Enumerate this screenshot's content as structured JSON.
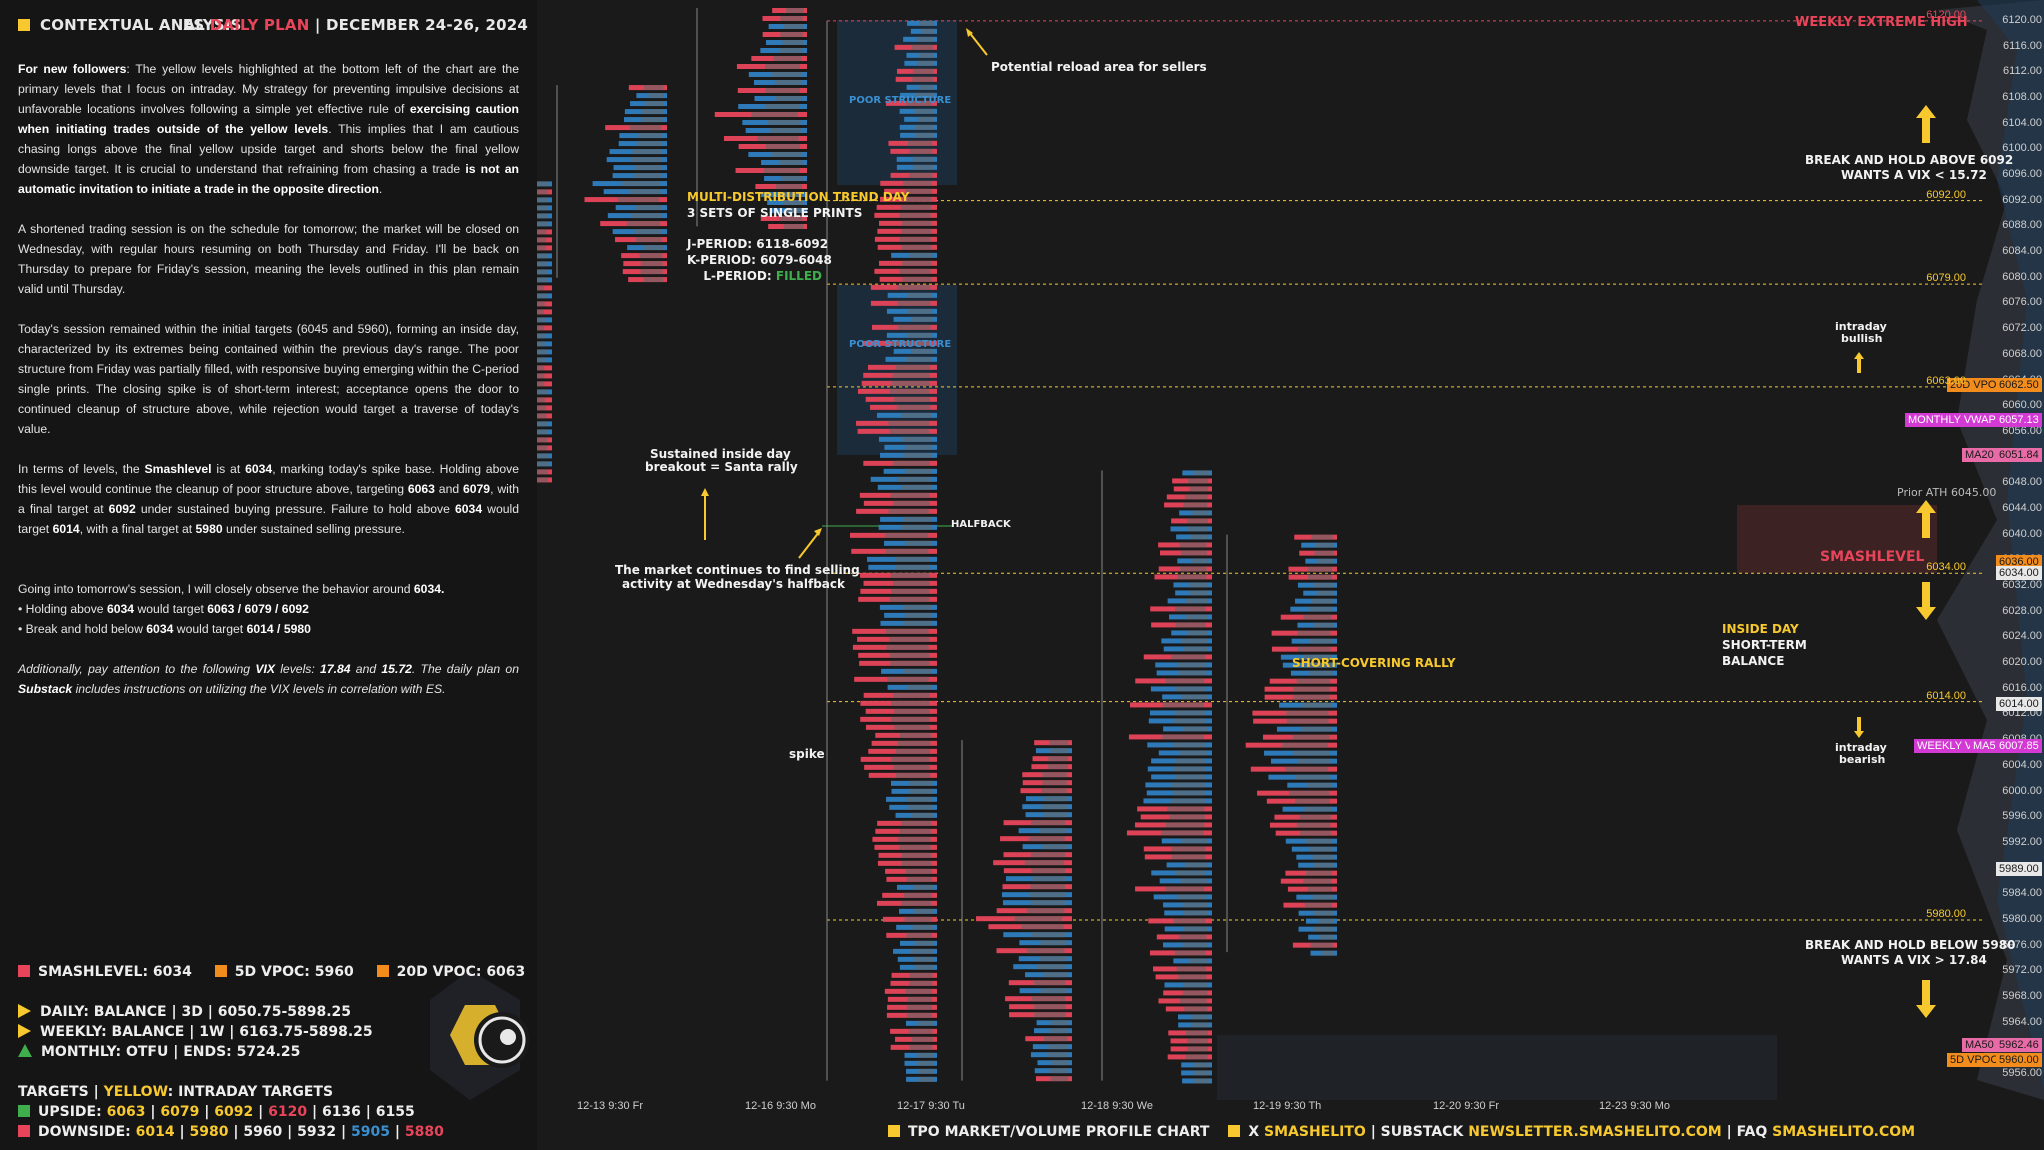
{
  "header": {
    "left_title": "CONTEXTUAL ANALYSIS",
    "symbol": "ES",
    "plan": "DAILY PLAN",
    "sep": "|",
    "dates": "DECEMBER 24-26, 2024"
  },
  "paragraphs": {
    "p1_lead": "For new followers",
    "p1_a": ": The yellow levels highlighted at the bottom left of the chart are the primary levels that I focus on intraday. My strategy for preventing impulsive decisions at unfavorable locations involves following a simple yet effective rule of ",
    "p1_b": "exercising caution when initiating trades outside of the yellow levels",
    "p1_c": ". This implies that I am cautious chasing longs above the final yellow upside target and shorts below the final yellow downside target. It is crucial to understand that refraining from chasing a trade ",
    "p1_d": "is not an automatic invitation to initiate a trade in the opposite direction",
    "p1_e": ".",
    "p2": "A shortened trading session is on the schedule for tomorrow; the market will be closed on Wednesday, with regular hours resuming on both Thursday and Friday. I'll be back on Thursday to prepare for Friday's session, meaning the levels outlined in this plan remain valid until Thursday.",
    "p3": "Today's session remained within the initial targets (6045 and 5960), forming an inside day, characterized by its extremes being contained within the previous day's range. The poor structure from Friday was partially filled, with responsive buying emerging within the C-period single prints. The closing spike is of short-term interest; acceptance opens the door to continued cleanup of structure above, while rejection would target a traverse of today's value.",
    "p4_a": "In terms of levels, the ",
    "p4_b": "Smashlevel",
    "p4_c": " is at ",
    "p4_d": "6034",
    "p4_e": ", marking today's spike base. Holding above this level would continue the cleanup of poor structure above, targeting ",
    "p4_f": "6063",
    "p4_g": " and ",
    "p4_h": "6079",
    "p4_i": ", with a final target at ",
    "p4_j": "6092",
    "p4_k": " under sustained buying pressure. Failure to hold above ",
    "p4_l": "6034",
    "p4_m": " would target ",
    "p4_n": "6014",
    "p4_o": ", with a final target at ",
    "p4_p": "5980",
    "p4_q": " under sustained selling pressure.",
    "p5_a": "Going into tomorrow's session, I will closely observe the behavior around ",
    "p5_b": "6034.",
    "b1_a": "• Holding above ",
    "b1_b": "6034",
    "b1_c": " would target ",
    "b1_d": "6063 / 6079 / 6092",
    "b2_a": "• Break and hold below ",
    "b2_b": "6034",
    "b2_c": " would target ",
    "b2_d": "6014 / 5980",
    "p6_a": "Additionally, pay attention to the following ",
    "p6_b": "VIX",
    "p6_c": " levels: ",
    "p6_d": "17.84",
    "p6_e": " and ",
    "p6_f": "15.72",
    "p6_g": ". The daily plan on ",
    "p6_h": "Substack",
    "p6_i": " includes instructions on utilizing the VIX levels in correlation with ES."
  },
  "legend": {
    "smash": "SMASHLEVEL: 6034",
    "vpoc5": "5D VPOC: 5960",
    "vpoc20": "20D VPOC: 6063",
    "daily": "DAILY: BALANCE  |  3D  |  6050.75-5898.25",
    "weekly": "WEEKLY: BALANCE  |  1W  |  6163.75-5898.25",
    "monthly": "MONTHLY: OTFU  |  ENDS: 5724.25",
    "colors": {
      "smash": "#e8455a",
      "vpoc": "#f28c1c",
      "yellow": "#f7c92f",
      "green": "#3fae4c"
    }
  },
  "targets": {
    "title_a": "TARGETS",
    "title_b": "YELLOW",
    "title_c": ": INTRADAY TARGETS",
    "up_label": "UPSIDE: ",
    "up_values": [
      "6063",
      "6079",
      "6092",
      "6120",
      "6136",
      "6155"
    ],
    "down_label": "DOWNSIDE: ",
    "down_values": [
      "6014",
      "5980",
      "5960",
      "5932",
      "5905",
      "5880"
    ]
  },
  "annotations": {
    "reload": "Potential reload area for sellers",
    "weekly_extreme": "WEEKLY EXTREME HIGH",
    "break_above_1": "BREAK AND HOLD ABOVE 6092",
    "break_above_2": "WANTS A VIX < 15.72",
    "break_below_1": "BREAK AND HOLD BELOW 5980",
    "break_below_2": "WANTS A VIX > 17.84",
    "multi1": "MULTI-DISTRIBUTION TREND DAY",
    "multi2": "3 SETS OF SINGLE PRINTS",
    "j_period": "J-PERIOD: 6118-6092",
    "k_period": "K-PERIOD: 6079-6048",
    "l_period": "L-PERIOD: ",
    "l_filled": "FILLED",
    "poor1": "POOR STRUCTURE",
    "poor2": "POOR STRUCTURE",
    "sustained1": "Sustained inside day",
    "sustained2": "breakout = Santa rally",
    "market1": "The market continues to find selling",
    "market2": "activity at Wednesday's halfback",
    "halfback": "HALFBACK",
    "spike": "spike",
    "intraday_bullish1": "intraday",
    "intraday_bullish2": "bullish",
    "intraday_bearish1": "intraday",
    "intraday_bearish2": "bearish",
    "smashlevel": "SMASHLEVEL",
    "inside1": "INSIDE DAY",
    "inside2": "SHORT-TERM",
    "inside3": "BALANCE",
    "short_cover": "SHORT-COVERING RALLY",
    "prior_ath": "Prior ATH",
    "prior_ath_val": "6045.00"
  },
  "levels": [
    {
      "v": "6120.00",
      "c": "#e8455a"
    },
    {
      "v": "6092.00",
      "c": "#f7c92f"
    },
    {
      "v": "6079.00",
      "c": "#f7c92f"
    },
    {
      "v": "6063.00",
      "c": "#f7c92f"
    },
    {
      "v": "6034.00",
      "c": "#f7c92f"
    },
    {
      "v": "6014.00",
      "c": "#f7c92f"
    },
    {
      "v": "5980.00",
      "c": "#f7c92f"
    }
  ],
  "tags": {
    "vpoc20": "20D VPOC",
    "vpoc20_val": "6062.50",
    "mvwap": "MONTHLY VWAP",
    "mvwap_val": "6057.13",
    "ma20": "MA20",
    "ma20_val": "6051.84",
    "smash_val": "6036.00",
    "smash_val2": "6034.00",
    "v6014": "6014.00",
    "wvwap": "WEEKLY VWAP",
    "ma5": "MA5",
    "ma5_val": "6007.85",
    "v5989": "5989.00",
    "ma50": "MA50",
    "ma50_val": "5962.46",
    "vpoc5": "5D VPOC",
    "vpoc5_val": "5960.00"
  },
  "chart_data": {
    "type": "table",
    "title": "TPO MARKET/VOLUME PROFILE CHART",
    "y_axis": {
      "ticks": [
        "6120.00",
        "6116.00",
        "6112.00",
        "6108.00",
        "6104.00",
        "6100.00",
        "6096.00",
        "6092.00",
        "6088.00",
        "6084.00",
        "6080.00",
        "6076.00",
        "6072.00",
        "6068.00",
        "6064.00",
        "6060.00",
        "6056.00",
        "6052.00",
        "6048.00",
        "6044.00",
        "6040.00",
        "6036.00",
        "6032.00",
        "6028.00",
        "6024.00",
        "6020.00",
        "6016.00",
        "6012.00",
        "6008.00",
        "6004.00",
        "6000.00",
        "5996.00",
        "5992.00",
        "5988.00",
        "5984.00",
        "5980.00",
        "5976.00",
        "5972.00",
        "5968.00",
        "5964.00",
        "5960.00",
        "5956.00"
      ],
      "ylim": [
        5954,
        6122
      ]
    },
    "x_sessions": [
      "12-13  9:30 Fr",
      "12-16  9:30 Mo",
      "12-17  9:30 Tu",
      "12-18  9:30 We",
      "12-19  9:30 Th",
      "12-20  9:30 Fr",
      "12-23  9:30 Mo"
    ],
    "sessions": [
      {
        "label": "12-13",
        "high": 6095,
        "low": 6048
      },
      {
        "label": "12-16",
        "high": 6110,
        "low": 6080
      },
      {
        "label": "12-17",
        "high": 6122,
        "low": 6088
      },
      {
        "label": "12-18",
        "high": 6120,
        "low": 5955
      },
      {
        "label": "12-19",
        "high": 6008,
        "low": 5955
      },
      {
        "label": "12-20",
        "high": 6050,
        "low": 5955
      },
      {
        "label": "12-23",
        "high": 6040,
        "low": 5975
      }
    ]
  },
  "footer": {
    "a": "TPO MARKET/VOLUME PROFILE CHART",
    "b": "X",
    "c": "SMASHELITO",
    "d": "|  SUBSTACK",
    "e": "NEWSLETTER.SMASHELITO.COM",
    "f": "|  FAQ",
    "g": "SMASHELITO.COM"
  }
}
